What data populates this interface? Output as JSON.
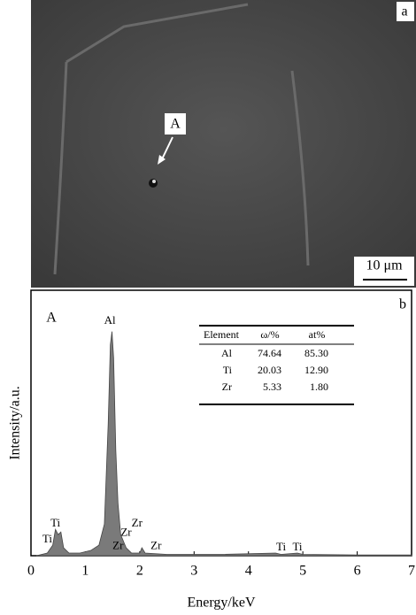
{
  "panel_a": {
    "label": "a",
    "marker": "A",
    "scale_bar": "10 μm"
  },
  "inset_table": {
    "header": [
      "Element",
      "ω/%",
      "at%"
    ],
    "rows": [
      [
        "Al",
        "74.64",
        "85.30"
      ],
      [
        "Ti",
        "20.03",
        "12.90"
      ],
      [
        "Zr",
        "5.33",
        "1.80"
      ]
    ]
  },
  "chart_data": {
    "type": "area",
    "panel_label": "b",
    "spectrum_label": "A",
    "x_label": "Energy/keV",
    "y_label": "Intensity/a.u.",
    "x": [
      0.1,
      0.3,
      0.4,
      0.45,
      0.5,
      0.55,
      0.6,
      0.7,
      0.9,
      1.1,
      1.25,
      1.35,
      1.42,
      1.46,
      1.49,
      1.52,
      1.56,
      1.6,
      1.65,
      1.75,
      1.85,
      2.0,
      2.04,
      2.1,
      2.5,
      3.5,
      4.5,
      4.6,
      4.9,
      5.0,
      6.0,
      7.0
    ],
    "values": [
      0,
      1,
      4,
      10,
      8,
      9,
      3,
      1,
      1,
      2,
      4,
      12,
      50,
      80,
      85,
      75,
      40,
      20,
      8,
      3,
      1,
      1,
      3,
      1,
      0.5,
      0.5,
      1,
      0.5,
      1,
      0.5,
      0.3,
      0.3
    ],
    "color": "#7a7a7a",
    "xlim": [
      0,
      7
    ],
    "ylim": [
      0,
      100
    ],
    "xticks": [
      0,
      1,
      2,
      3,
      4,
      5,
      6,
      7
    ],
    "annotations": [
      {
        "text": "Al",
        "x": 1.45,
        "y": 89
      },
      {
        "text": "Ti",
        "x": 0.45,
        "y": 12
      },
      {
        "text": "Ti",
        "x": 0.3,
        "y": 6
      },
      {
        "text": "Zr",
        "x": 1.95,
        "y": 12
      },
      {
        "text": "Zr",
        "x": 1.75,
        "y": 8.5
      },
      {
        "text": "Zr",
        "x": 1.6,
        "y": 3.5
      },
      {
        "text": "Zr",
        "x": 2.3,
        "y": 3.5
      },
      {
        "text": "Ti",
        "x": 4.6,
        "y": 3
      },
      {
        "text": "Ti",
        "x": 4.9,
        "y": 3
      }
    ]
  }
}
